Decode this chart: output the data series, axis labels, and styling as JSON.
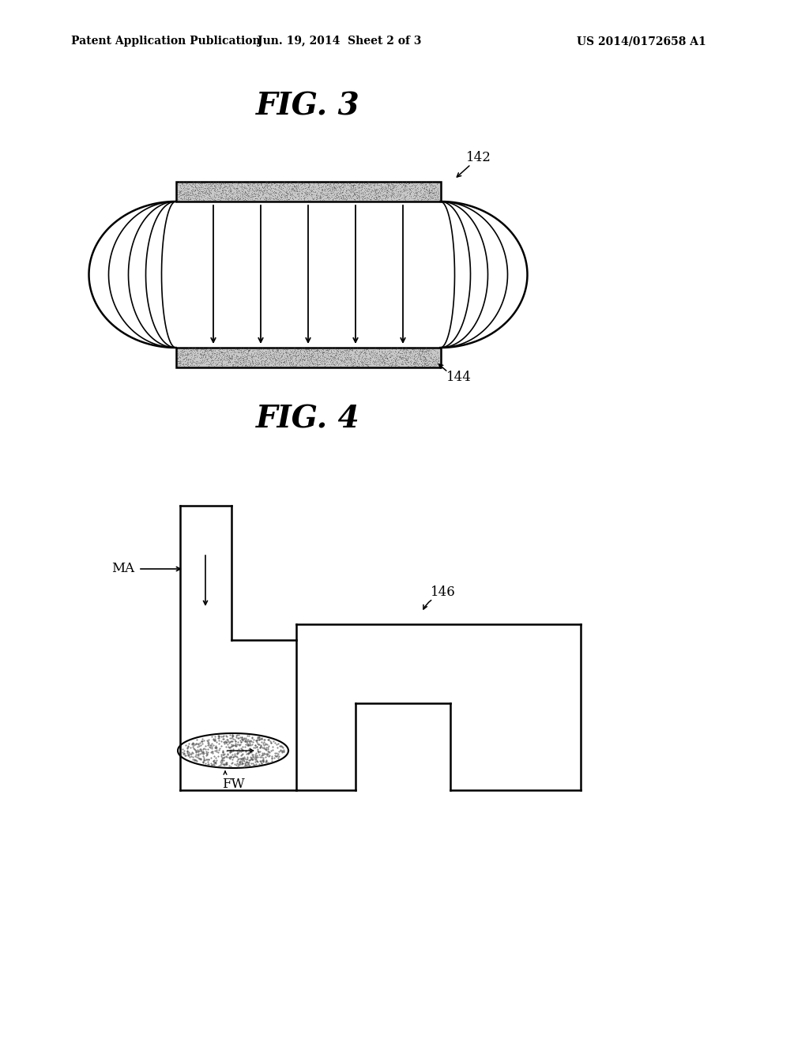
{
  "bg_color": "#ffffff",
  "header_left": "Patent Application Publication",
  "header_mid": "Jun. 19, 2014  Sheet 2 of 3",
  "header_right": "US 2014/0172658 A1",
  "fig3_title": "FIG. 3",
  "fig4_title": "FIG. 4",
  "label_142": "142",
  "label_144": "144",
  "label_MA": "MA",
  "label_FW": "FW",
  "label_146": "146",
  "lw": 1.8
}
